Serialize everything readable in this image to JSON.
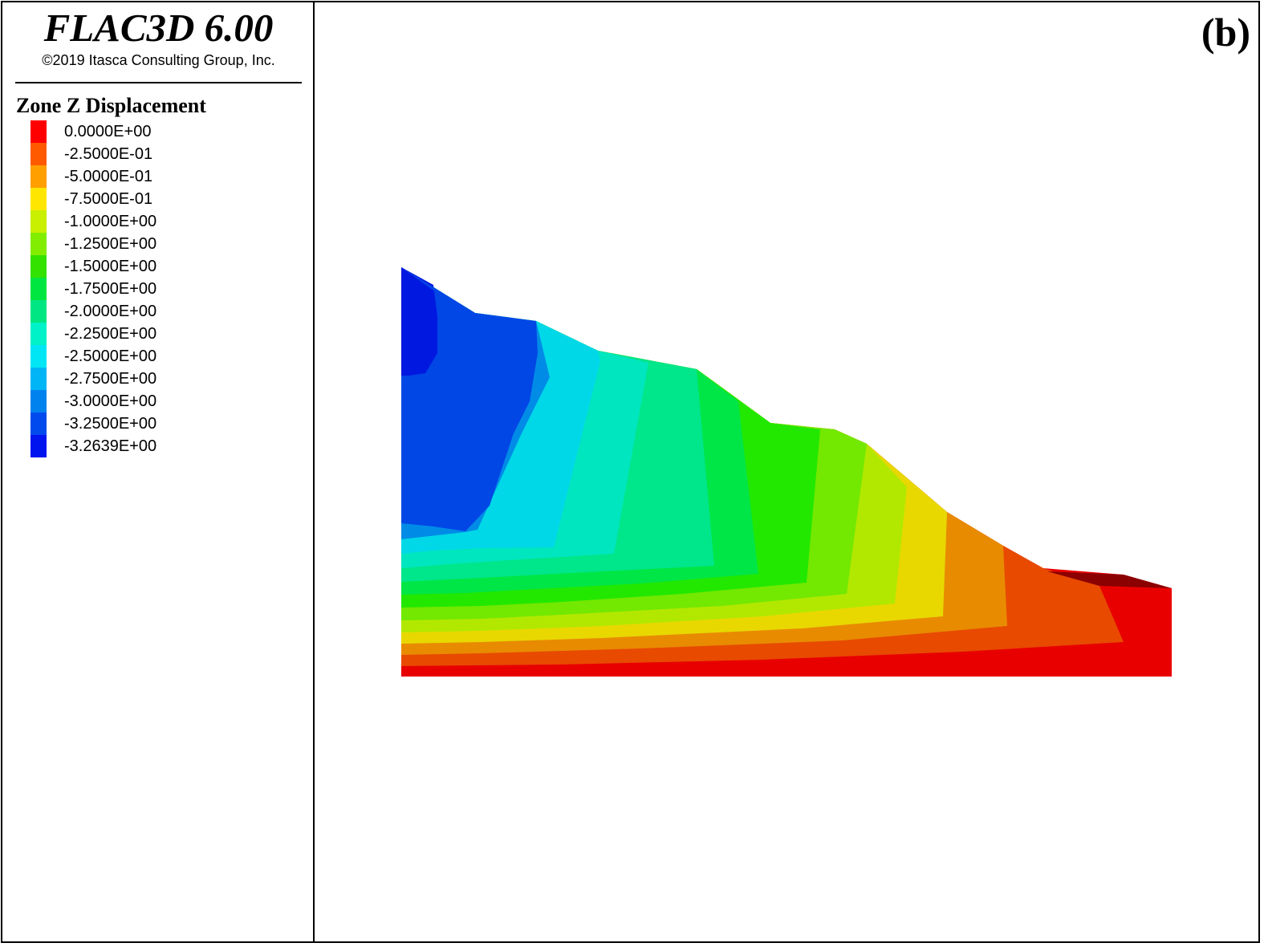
{
  "header": {
    "app_title": "FLAC3D 6.00",
    "copyright": "©2019 Itasca Consulting Group, Inc.",
    "panel_label": "(b)"
  },
  "legend": {
    "title": "Zone Z Displacement",
    "entries": [
      {
        "label": "0.0000E+00",
        "color": "#ff0000"
      },
      {
        "label": "-2.5000E-01",
        "color": "#ff5a00"
      },
      {
        "label": "-5.0000E-01",
        "color": "#ff9f00"
      },
      {
        "label": "-7.5000E-01",
        "color": "#ffe600"
      },
      {
        "label": "-1.0000E+00",
        "color": "#c8f000"
      },
      {
        "label": "-1.2500E+00",
        "color": "#82ed00"
      },
      {
        "label": "-1.5000E+00",
        "color": "#34e200"
      },
      {
        "label": "-1.7500E+00",
        "color": "#00e640"
      },
      {
        "label": "-2.0000E+00",
        "color": "#00e683"
      },
      {
        "label": "-2.2500E+00",
        "color": "#00f2c8"
      },
      {
        "label": "-2.5000E+00",
        "color": "#00e6f5"
      },
      {
        "label": "-2.7500E+00",
        "color": "#00b5f5"
      },
      {
        "label": "-3.0000E+00",
        "color": "#0082ee"
      },
      {
        "label": "-3.2500E+00",
        "color": "#004aee"
      },
      {
        "label": "-3.2639E+00",
        "color": "#0014f0"
      }
    ]
  },
  "plot": {
    "quantity": "Zone Z Displacement",
    "colors": {
      "red": "#e80000",
      "red_orange": "#e84a00",
      "orange": "#e88b00",
      "yellow": "#e8d800",
      "yellow_green": "#b2e800",
      "light_green": "#73e800",
      "green": "#22e800",
      "green_mid": "#00e646",
      "aqua_green": "#00e68a",
      "turquoise": "#00e6bf",
      "cyan": "#00d8e8",
      "sky_blue": "#008ce6",
      "blue": "#0047e6",
      "deep_blue": "#0018e0",
      "dark_red": "#8b0000"
    }
  }
}
